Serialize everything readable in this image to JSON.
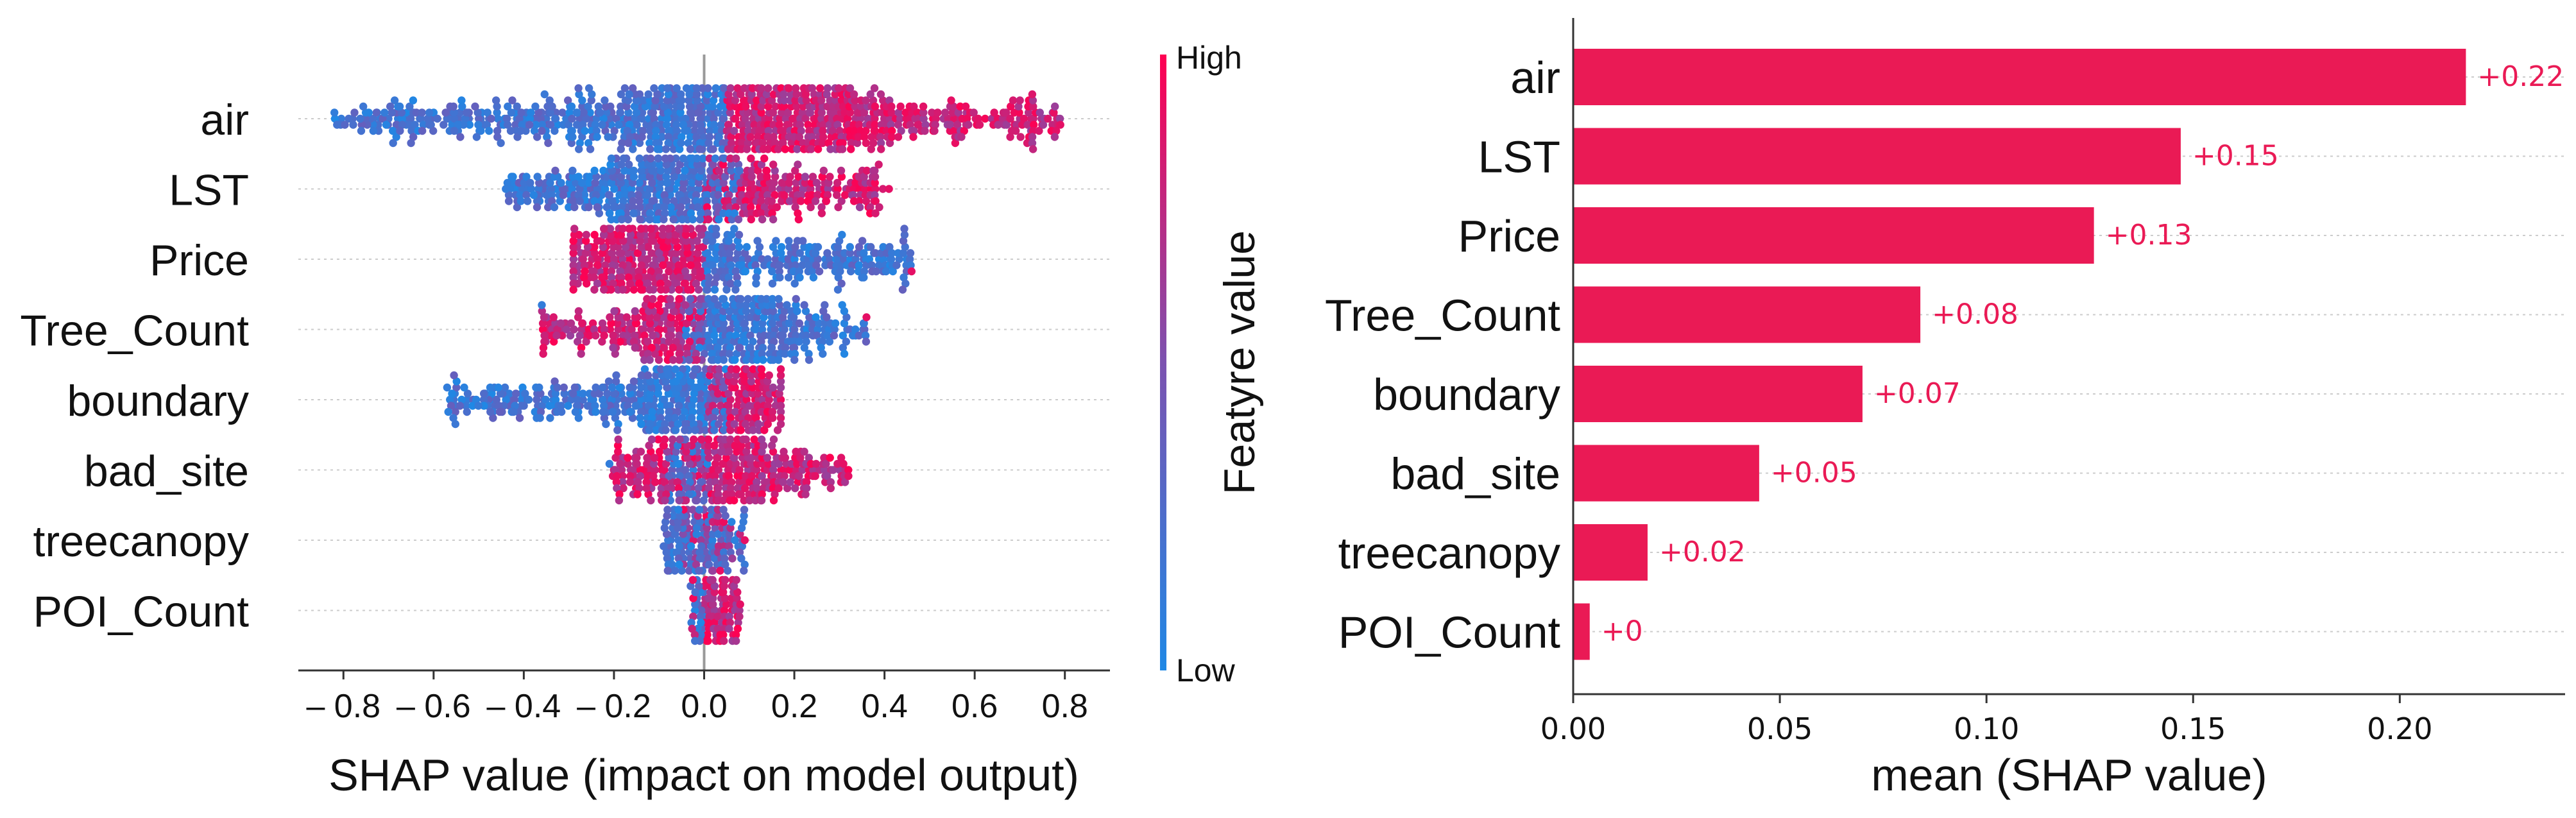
{
  "chart_data": [
    {
      "type": "scatter",
      "subtype": "beeswarm",
      "features": [
        "air",
        "LST",
        "Price",
        "Tree_Count",
        "boundary",
        "bad_site",
        "treecanopy",
        "POI_Count"
      ],
      "xlabel": "SHAP value (impact on model output)",
      "xlim": [
        -0.9,
        0.9
      ],
      "xticks": [
        -0.8,
        -0.6,
        -0.4,
        -0.2,
        0.0,
        0.2,
        0.4,
        0.6,
        0.8
      ],
      "xtick_labels": [
        "– 0.8",
        "– 0.6",
        "– 0.4",
        "– 0.2",
        "0.0",
        "0.2",
        "0.4",
        "0.6",
        "0.8"
      ],
      "zero_line": 0,
      "distributions": [
        {
          "feature": "air",
          "min": -0.82,
          "max": 0.79,
          "low_range": [
            -0.82,
            0.05
          ],
          "high_range": [
            0.05,
            0.79
          ],
          "peak": 0.07
        },
        {
          "feature": "LST",
          "min": -0.44,
          "max": 0.41,
          "low_range": [
            -0.44,
            0.0
          ],
          "high_range": [
            0.08,
            0.41
          ],
          "peak": -0.05
        },
        {
          "feature": "Price",
          "min": -0.29,
          "max": 0.46,
          "low_range": [
            0.0,
            0.46
          ],
          "high_range": [
            -0.29,
            0.0
          ],
          "peak": -0.1
        },
        {
          "feature": "Tree_Count",
          "min": -0.36,
          "max": 0.36,
          "low_range": [
            -0.05,
            0.36
          ],
          "high_range": [
            -0.36,
            0.0
          ],
          "peak": 0.02
        },
        {
          "feature": "boundary",
          "min": -0.57,
          "max": 0.17,
          "low_range": [
            -0.57,
            0.05
          ],
          "high_range": [
            0.0,
            0.17
          ],
          "peak": 0.03
        },
        {
          "feature": "bad_site",
          "min": -0.21,
          "max": 0.32,
          "low_range": [
            -0.08,
            0.01
          ],
          "high_range": [
            -0.21,
            0.32
          ],
          "peak": 0.0
        },
        {
          "feature": "treecanopy",
          "min": -0.09,
          "max": 0.09,
          "low_range": [
            -0.09,
            0.09
          ],
          "high_range": [
            -0.05,
            0.08
          ],
          "peak": 0.0
        },
        {
          "feature": "POI_Count",
          "min": -0.03,
          "max": 0.08,
          "low_range": [
            -0.02,
            0.0
          ],
          "high_range": [
            0.0,
            0.08
          ],
          "peak": 0.0
        }
      ],
      "colorbar": {
        "title": "Featyre value",
        "high_label": "High",
        "low_label": "Low",
        "low_color": "#1f88e5",
        "mid_color": "#7c52b0",
        "high_color": "#ff0052"
      }
    },
    {
      "type": "bar",
      "orientation": "horizontal",
      "categories": [
        "air",
        "LST",
        "Price",
        "Tree_Count",
        "boundary",
        "bad_site",
        "treecanopy",
        "POI_Count"
      ],
      "values": [
        0.216,
        0.147,
        0.126,
        0.084,
        0.07,
        0.045,
        0.018,
        0.004
      ],
      "value_labels": [
        "+0.22",
        "+0.15",
        "+0.13",
        "+0.08",
        "+0.07",
        "+0.05",
        "+0.02",
        "+0"
      ],
      "xlabel": "mean (SHAP value)",
      "xlim": [
        0,
        0.24
      ],
      "xticks": [
        0.0,
        0.05,
        0.1,
        0.15,
        0.2
      ],
      "xtick_labels": [
        "0.00",
        "0.05",
        "0.10",
        "0.15",
        "0.20"
      ],
      "bar_color": "#ea1a55"
    }
  ]
}
